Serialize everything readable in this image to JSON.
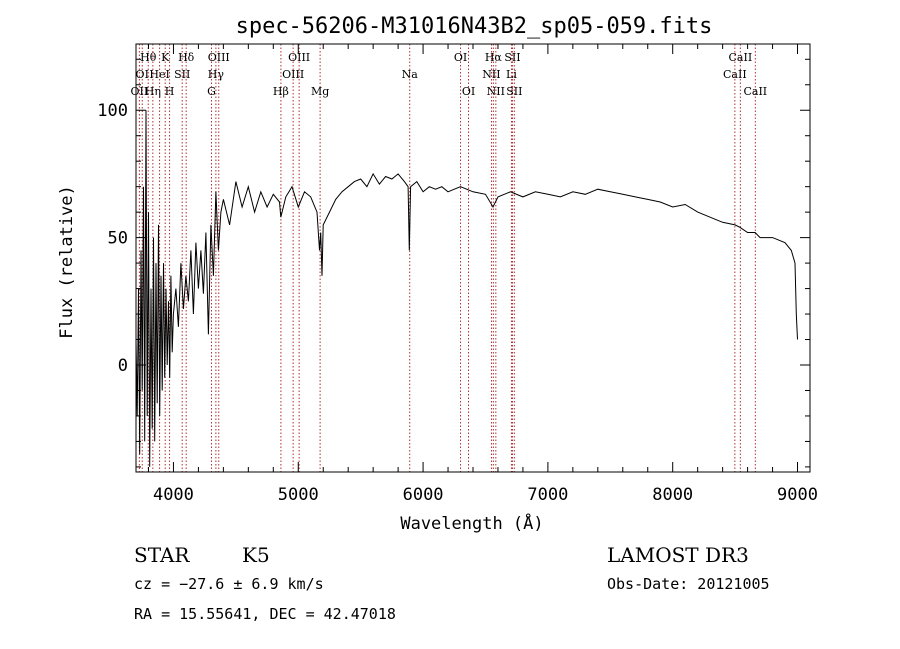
{
  "chart_data": {
    "type": "line",
    "title": "spec-56206-M31016N43B2_sp05-059.fits",
    "xlabel": "Wavelength (Å)",
    "ylabel": "Flux (relative)",
    "xlim": [
      3700,
      9100
    ],
    "ylim": [
      -42,
      126
    ],
    "x_ticks": [
      4000,
      5000,
      6000,
      7000,
      8000,
      9000
    ],
    "y_ticks": [
      0,
      50,
      100
    ],
    "series": [
      {
        "name": "flux",
        "x": [
          3700,
          3710,
          3720,
          3730,
          3740,
          3750,
          3760,
          3770,
          3780,
          3790,
          3800,
          3810,
          3820,
          3830,
          3840,
          3850,
          3860,
          3870,
          3880,
          3890,
          3900,
          3910,
          3920,
          3930,
          3940,
          3950,
          3960,
          3970,
          3980,
          3990,
          4000,
          4020,
          4040,
          4060,
          4080,
          4100,
          4120,
          4140,
          4160,
          4180,
          4200,
          4220,
          4240,
          4260,
          4280,
          4300,
          4320,
          4340,
          4360,
          4380,
          4400,
          4450,
          4500,
          4550,
          4600,
          4650,
          4700,
          4750,
          4800,
          4850,
          4860,
          4900,
          4950,
          5000,
          5050,
          5100,
          5150,
          5170,
          5180,
          5190,
          5200,
          5250,
          5300,
          5350,
          5400,
          5450,
          5500,
          5550,
          5600,
          5650,
          5700,
          5750,
          5800,
          5850,
          5880,
          5890,
          5900,
          5950,
          6000,
          6050,
          6100,
          6150,
          6200,
          6250,
          6300,
          6400,
          6500,
          6560,
          6600,
          6700,
          6800,
          6900,
          7000,
          7100,
          7200,
          7300,
          7400,
          7500,
          7600,
          7700,
          7800,
          7900,
          8000,
          8100,
          8200,
          8300,
          8400,
          8500,
          8540,
          8600,
          8660,
          8700,
          8800,
          8900,
          8950,
          8980,
          8990,
          9000
        ],
        "y": [
          10,
          -20,
          30,
          -35,
          45,
          -10,
          70,
          -30,
          100,
          -20,
          60,
          -40,
          30,
          -25,
          50,
          -30,
          40,
          -15,
          55,
          -20,
          35,
          -10,
          40,
          -5,
          30,
          0,
          25,
          -5,
          35,
          5,
          20,
          30,
          15,
          40,
          22,
          35,
          25,
          45,
          20,
          48,
          30,
          45,
          28,
          52,
          12,
          55,
          35,
          68,
          45,
          60,
          65,
          55,
          72,
          62,
          70,
          60,
          68,
          62,
          67,
          64,
          58,
          66,
          70,
          62,
          68,
          66,
          60,
          45,
          52,
          35,
          55,
          60,
          65,
          68,
          70,
          72,
          73,
          70,
          75,
          71,
          74,
          73,
          75,
          72,
          70,
          45,
          70,
          72,
          68,
          70,
          69,
          70,
          68,
          69,
          70,
          68,
          67,
          62,
          66,
          68,
          66,
          68,
          67,
          66,
          68,
          67,
          69,
          68,
          67,
          66,
          65,
          64,
          62,
          63,
          60,
          58,
          56,
          55,
          54,
          52,
          52,
          50,
          50,
          48,
          45,
          40,
          20,
          10
        ]
      }
    ],
    "line_labels": [
      {
        "label": "Hθ",
        "x": 3798,
        "row": 1
      },
      {
        "label": "OI",
        "x": 3750,
        "row": 2
      },
      {
        "label": "OII",
        "x": 3727,
        "row": 3
      },
      {
        "label": "K",
        "x": 3934,
        "row": 1
      },
      {
        "label": "HeI",
        "x": 3889,
        "row": 2
      },
      {
        "label": "Hη",
        "x": 3835,
        "row": 3
      },
      {
        "label": "Hδ",
        "x": 4102,
        "row": 1
      },
      {
        "label": "SII",
        "x": 4070,
        "row": 2
      },
      {
        "label": "H",
        "x": 3969,
        "row": 3
      },
      {
        "label": "OIII",
        "x": 4363,
        "row": 1
      },
      {
        "label": "Hγ",
        "x": 4340,
        "row": 2
      },
      {
        "label": "G",
        "x": 4305,
        "row": 3
      },
      {
        "label": "OIII",
        "x": 5007,
        "row": 1
      },
      {
        "label": "OIII",
        "x": 4959,
        "row": 2
      },
      {
        "label": "Hβ",
        "x": 4861,
        "row": 3
      },
      {
        "label": "Mg",
        "x": 5175,
        "row": 3
      },
      {
        "label": "Na",
        "x": 5893,
        "row": 2
      },
      {
        "label": "OI",
        "x": 6300,
        "row": 1
      },
      {
        "label": "OI",
        "x": 6364,
        "row": 3
      },
      {
        "label": "Hα",
        "x": 6563,
        "row": 1
      },
      {
        "label": "SII",
        "x": 6716,
        "row": 1
      },
      {
        "label": "NII",
        "x": 6548,
        "row": 2
      },
      {
        "label": "Li",
        "x": 6708,
        "row": 2
      },
      {
        "label": "NII",
        "x": 6583,
        "row": 3
      },
      {
        "label": "SII",
        "x": 6731,
        "row": 3
      },
      {
        "label": "CaII",
        "x": 8542,
        "row": 1
      },
      {
        "label": "CaII",
        "x": 8498,
        "row": 2
      },
      {
        "label": "CaII",
        "x": 8662,
        "row": 3
      }
    ],
    "line_color": "#b03030"
  },
  "info": {
    "class": "STAR",
    "subclass": "K5",
    "survey": "LAMOST DR3",
    "cz": "cz = −27.6 ± 6.9 km/s",
    "obs_date": "Obs-Date: 20121005",
    "coords": "RA =  15.55641, DEC =  42.47018"
  }
}
